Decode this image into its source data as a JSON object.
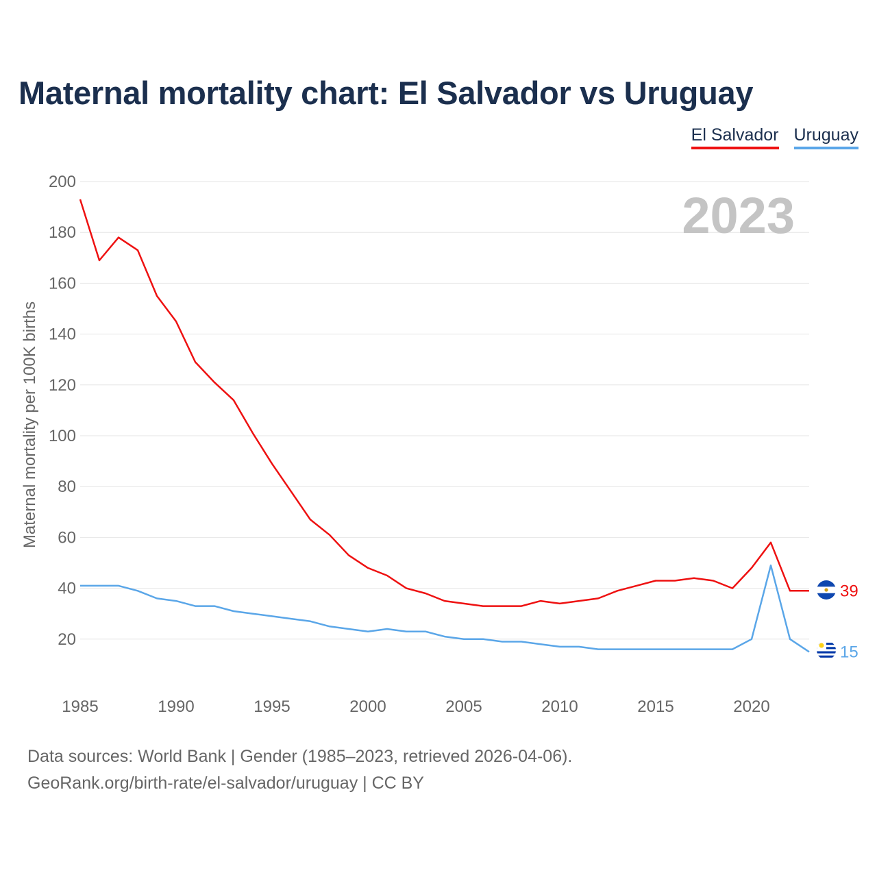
{
  "title": "Maternal mortality chart: El Salvador vs Uruguay",
  "legend": [
    {
      "name": "El Salvador",
      "color": "#ee1111"
    },
    {
      "name": "Uruguay",
      "color": "#5aa6e8"
    }
  ],
  "year_watermark": "2023",
  "footer": {
    "line1": "Data sources: World Bank | Gender (1985–2023, retrieved 2026-04-06).",
    "line2": "GeoRank.org/birth-rate/el-salvador/uruguay | CC BY"
  },
  "chart_data": {
    "type": "line",
    "title": "Maternal mortality chart: El Salvador vs Uruguay",
    "xlabel": "",
    "ylabel": "Maternal mortality per 100K births",
    "xlim": [
      1985,
      2023
    ],
    "ylim": [
      0,
      200
    ],
    "x_ticks": [
      1985,
      1990,
      1995,
      2000,
      2005,
      2010,
      2015,
      2020
    ],
    "y_ticks": [
      20,
      40,
      60,
      80,
      100,
      120,
      140,
      160,
      180,
      200
    ],
    "x": [
      1985,
      1986,
      1987,
      1988,
      1989,
      1990,
      1991,
      1992,
      1993,
      1994,
      1995,
      1996,
      1997,
      1998,
      1999,
      2000,
      2001,
      2002,
      2003,
      2004,
      2005,
      2006,
      2007,
      2008,
      2009,
      2010,
      2011,
      2012,
      2013,
      2014,
      2015,
      2016,
      2017,
      2018,
      2019,
      2020,
      2021,
      2022,
      2023
    ],
    "series": [
      {
        "name": "El Salvador",
        "color": "#ee1111",
        "end_label": "39",
        "values": [
          193,
          169,
          178,
          173,
          155,
          145,
          129,
          121,
          114,
          101,
          89,
          78,
          67,
          61,
          53,
          48,
          45,
          40,
          38,
          35,
          34,
          33,
          33,
          33,
          35,
          34,
          35,
          36,
          39,
          41,
          43,
          43,
          44,
          43,
          40,
          48,
          58,
          39,
          39
        ]
      },
      {
        "name": "Uruguay",
        "color": "#5aa6e8",
        "end_label": "15",
        "values": [
          41,
          41,
          41,
          39,
          36,
          35,
          33,
          33,
          31,
          30,
          29,
          28,
          27,
          25,
          24,
          23,
          24,
          23,
          23,
          21,
          20,
          20,
          19,
          19,
          18,
          17,
          17,
          16,
          16,
          16,
          16,
          16,
          16,
          16,
          16,
          20,
          49,
          20,
          15
        ]
      }
    ]
  }
}
